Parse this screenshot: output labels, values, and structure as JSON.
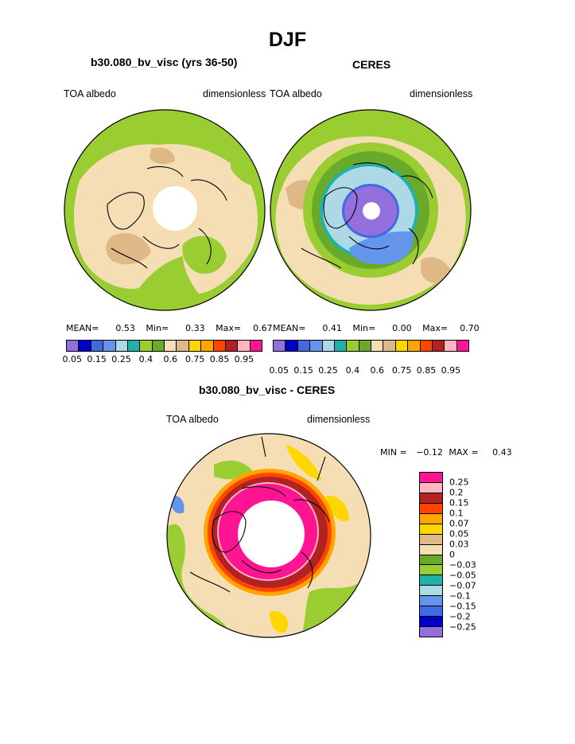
{
  "title": "DJF",
  "panels": [
    {
      "title": "b30.080_bv_visc (yrs 36-50)",
      "left_label": "TOA albedo",
      "right_label": "dimensionless",
      "mean_label": "MEAN=",
      "mean": "0.53",
      "min_label": "Min=",
      "min": "0.33",
      "max_label": "Max=",
      "max": "0.67"
    },
    {
      "title": "CERES",
      "left_label": "TOA albedo",
      "right_label": "dimensionless",
      "mean_label": "MEAN=",
      "mean": "0.41",
      "min_label": "Min=",
      "min": "0.00",
      "max_label": "Max=",
      "max": "0.70"
    }
  ],
  "colorbar": {
    "colors": [
      "#9370db",
      "#0000c8",
      "#4169e1",
      "#6495ed",
      "#add8e6",
      "#20b2aa",
      "#9acd32",
      "#6aaa2a",
      "#f5deb3",
      "#deb887",
      "#ffd700",
      "#ffa500",
      "#ff4500",
      "#b22222",
      "#ffb6c1",
      "#ff1493"
    ],
    "ticks": [
      "0.05",
      "0.15",
      "0.25",
      "0.4",
      "0.6",
      "0.75",
      "0.85",
      "0.95"
    ]
  },
  "diff": {
    "title": "b30.080_bv_visc - CERES",
    "left_label": "TOA albedo",
    "right_label": "dimensionless",
    "min_label": "MIN =",
    "min": "−0.12",
    "max_label": "MAX =",
    "max": "0.43",
    "colors": [
      "#ff1493",
      "#ffb6c1",
      "#b22222",
      "#ff4500",
      "#ffa500",
      "#ffd700",
      "#deb887",
      "#f5deb3",
      "#6aaa2a",
      "#9acd32",
      "#20b2aa",
      "#add8e6",
      "#6495ed",
      "#4169e1",
      "#0000c8",
      "#9370db"
    ],
    "labels": [
      "0.25",
      "0.2",
      "0.15",
      "0.1",
      "0.07",
      "0.05",
      "0.03",
      "0",
      "−0.03",
      "−0.05",
      "−0.07",
      "−0.1",
      "−0.15",
      "−0.2",
      "−0.25"
    ]
  },
  "map_colors": {
    "ocean": "#9acd32",
    "land": "#f5deb3",
    "tan": "#deb887",
    "light_blue": "#add8e6",
    "purple": "#9370db",
    "blue": "#6495ed",
    "pink": "#ff1493",
    "red": "#b22222",
    "orange": "#ff4500",
    "yellow": "#ffd700",
    "teal": "#20b2aa"
  }
}
